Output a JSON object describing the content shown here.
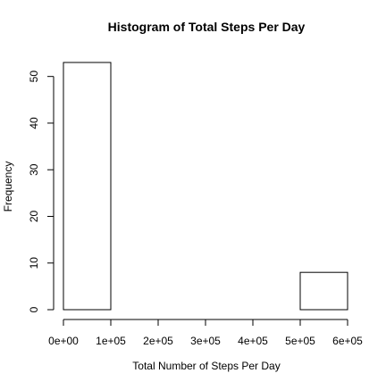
{
  "chart_data": {
    "type": "bar",
    "title": "Histogram of Total Steps Per Day",
    "xlabel": "Total Number of Steps Per Day",
    "ylabel": "Frequency",
    "bins": [
      {
        "start": 0,
        "end": 100000,
        "count": 53
      },
      {
        "start": 100000,
        "end": 200000,
        "count": 0
      },
      {
        "start": 200000,
        "end": 300000,
        "count": 0
      },
      {
        "start": 300000,
        "end": 400000,
        "count": 0
      },
      {
        "start": 400000,
        "end": 500000,
        "count": 0
      },
      {
        "start": 500000,
        "end": 600000,
        "count": 8
      }
    ],
    "xlim": [
      0,
      600000
    ],
    "ylim": [
      0,
      53
    ],
    "x_ticks": [
      0,
      100000,
      200000,
      300000,
      400000,
      500000,
      600000
    ],
    "x_tick_labels": [
      "0e+00",
      "1e+05",
      "2e+05",
      "3e+05",
      "4e+05",
      "5e+05",
      "6e+05"
    ],
    "y_ticks": [
      0,
      10,
      20,
      30,
      40,
      50
    ],
    "y_tick_labels": [
      "0",
      "10",
      "20",
      "30",
      "40",
      "50"
    ],
    "grid": false,
    "legend": "none",
    "bar_fill": "#ffffff",
    "bar_stroke": "#000000"
  }
}
